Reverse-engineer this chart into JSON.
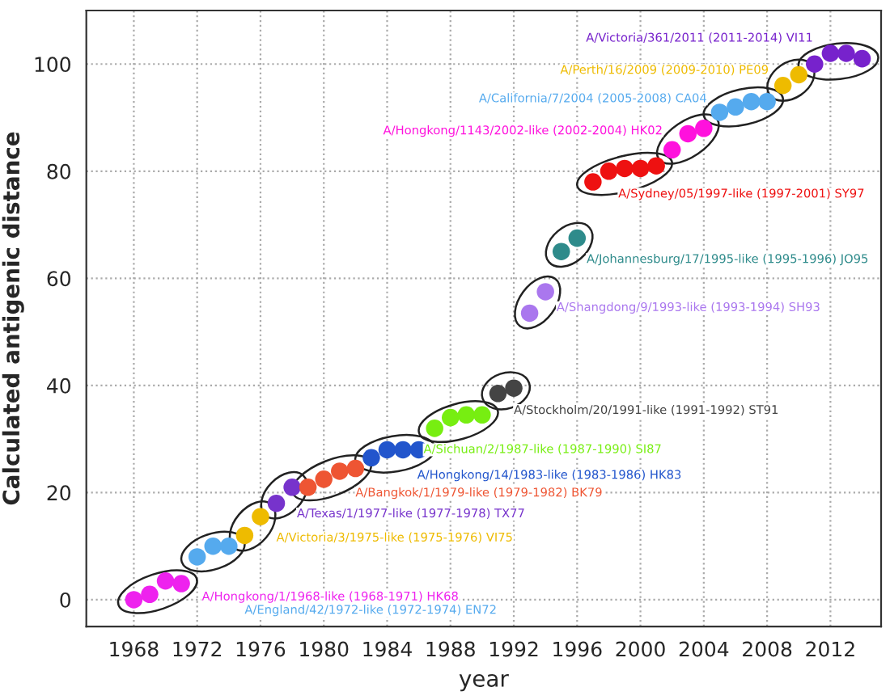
{
  "chart_data": {
    "type": "scatter",
    "xlabel": "year",
    "ylabel": "Calculated antigenic distance",
    "xlim": [
      1965,
      2015.2
    ],
    "ylim": [
      -5,
      110
    ],
    "xticks": [
      1968,
      1972,
      1976,
      1980,
      1984,
      1988,
      1992,
      1996,
      2000,
      2004,
      2008,
      2012
    ],
    "yticks": [
      0,
      20,
      40,
      60,
      80,
      100
    ],
    "grid": true,
    "marker": "circle",
    "legend": false,
    "series": [
      {
        "name": "A/Hongkong/1/1968-like (1968-1971) HK68",
        "color": "#ee22ee",
        "x": [
          1968,
          1969,
          1970,
          1971
        ],
        "values": [
          0,
          1,
          3.5,
          3
        ]
      },
      {
        "name": "A/England/42/1972-like (1972-1974) EN72",
        "color": "#55aaee",
        "x": [
          1972,
          1973,
          1974
        ],
        "values": [
          8,
          10,
          10
        ]
      },
      {
        "name": "A/Victoria/3/1975-like (1975-1976) VI75",
        "color": "#eebb00",
        "x": [
          1975,
          1976
        ],
        "values": [
          12,
          15.5
        ]
      },
      {
        "name": "A/Texas/1/1977-like (1977-1978) TX77",
        "color": "#7733cc",
        "x": [
          1977,
          1978
        ],
        "values": [
          18,
          21
        ]
      },
      {
        "name": "A/Bangkok/1/1979-like (1979-1982) BK79",
        "color": "#ee5533",
        "x": [
          1979,
          1980,
          1981,
          1982
        ],
        "values": [
          21,
          22.5,
          24,
          24.5
        ]
      },
      {
        "name": "A/Hongkong/14/1983-like (1983-1986) HK83",
        "color": "#2255cc",
        "x": [
          1983,
          1984,
          1985,
          1986
        ],
        "values": [
          26.5,
          28,
          28,
          28
        ]
      },
      {
        "name": "A/Sichuan/2/1987-like (1987-1990) SI87",
        "color": "#77ee11",
        "x": [
          1987,
          1988,
          1989,
          1990
        ],
        "values": [
          32,
          34,
          34.5,
          34.5
        ]
      },
      {
        "name": "A/Stockholm/20/1991-like (1991-1992) ST91",
        "color": "#444444",
        "x": [
          1991,
          1992
        ],
        "values": [
          38.5,
          39.5
        ]
      },
      {
        "name": "A/Shangdong/9/1993-like (1993-1994) SH93",
        "color": "#aa77ee",
        "x": [
          1993,
          1994
        ],
        "values": [
          53.5,
          57.5
        ]
      },
      {
        "name": "A/Johannesburg/17/1995-like (1995-1996) JO95",
        "color": "#2e8b8b",
        "x": [
          1995,
          1996
        ],
        "values": [
          65,
          67.5
        ]
      },
      {
        "name": "A/Sydney/05/1997-like (1997-2001) SY97",
        "color": "#ee1111",
        "x": [
          1997,
          1998,
          1999,
          2000,
          2001
        ],
        "values": [
          78,
          80,
          80.5,
          80.5,
          81
        ]
      },
      {
        "name": "A/Hongkong/1143/2002-like (2002-2004) HK02",
        "color": "#ff11dd",
        "x": [
          2002,
          2003,
          2004
        ],
        "values": [
          84,
          87,
          88
        ]
      },
      {
        "name": "A/California/7/2004 (2005-2008) CA04",
        "color": "#55aaee",
        "x": [
          2005,
          2006,
          2007,
          2008
        ],
        "values": [
          91,
          92,
          93,
          93
        ]
      },
      {
        "name": "A/Perth/16/2009 (2009-2010) PE09",
        "color": "#eebb00",
        "x": [
          2009,
          2010
        ],
        "values": [
          96,
          98
        ]
      },
      {
        "name": "A/Victoria/361/2011 (2011-2014) VI11",
        "color": "#7722cc",
        "x": [
          2011,
          2012,
          2013,
          2014
        ],
        "values": [
          100,
          102,
          102,
          101
        ]
      }
    ]
  }
}
